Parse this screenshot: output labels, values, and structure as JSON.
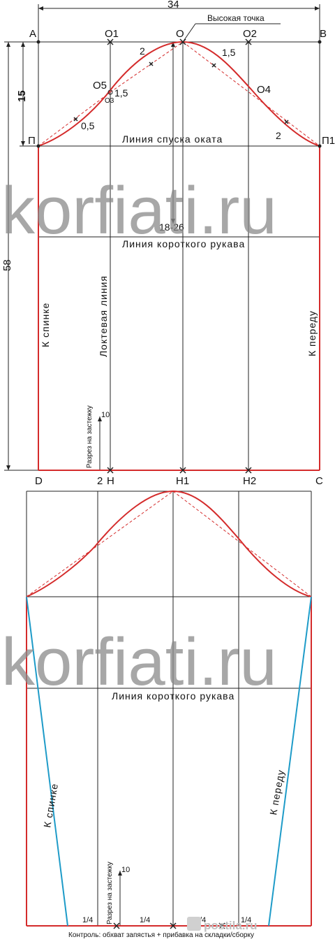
{
  "top": {
    "width_dimension": "34",
    "height_dimension": "58",
    "cap_depth_dimension": "15",
    "high_point_label": "Высокая точка",
    "cap_line_label": "Линия спуска оката",
    "short_sleeve_label": "Линия короткого рукава",
    "cap_height_range": "18-26",
    "elbow_line_label": "Локтевая линия",
    "back_label": "К спинке",
    "front_label": "К переду",
    "slit_label": "Разрез на застежку",
    "slit_length": "10",
    "slit_offset": "2",
    "points": {
      "A": "А",
      "O1": "О1",
      "O": "О",
      "O2": "О2",
      "B": "В",
      "O5": "О5",
      "O3": "О3",
      "O4": "О4",
      "P": "П",
      "P1": "П1",
      "D": "D",
      "H": "Н",
      "H1": "Н1",
      "H2": "Н2",
      "C": "С"
    },
    "curve_offsets": {
      "upper_back": "2",
      "back_o5": "1,5",
      "lower_back": "0,5",
      "upper_front": "1,5",
      "lower_front": "2"
    }
  },
  "bottom": {
    "short_sleeve_label": "Линия короткого рукава",
    "back_label": "К спинке",
    "front_label": "К переду",
    "slit_label": "Разрез на застежку",
    "slit_length": "10",
    "quarter_labels": [
      "1/4",
      "1/4",
      "1/4",
      "1/4"
    ],
    "control_note": "Контроль: обхват запястья + прибавка на складки/сборку"
  },
  "watermarks": {
    "main": "korfiati.ru",
    "corner": "postila.ru"
  },
  "colors": {
    "pattern_line": "#d42b2b",
    "construction_line": "#222222",
    "taper_line": "#1e9bc8",
    "watermark": "#8a8a8a"
  }
}
